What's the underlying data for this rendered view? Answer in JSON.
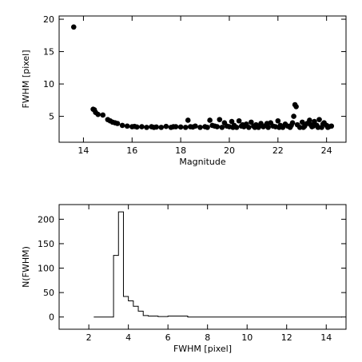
{
  "chart_data": [
    {
      "type": "scatter",
      "title": "",
      "xlabel": "Magnitude",
      "ylabel": "FWHM [pixel]",
      "xlim": [
        13,
        24.8
      ],
      "ylim": [
        1,
        20.5
      ],
      "xticks": [
        14,
        16,
        18,
        20,
        22,
        24
      ],
      "yticks": [
        5,
        10,
        15,
        20
      ],
      "grid": false,
      "points": [
        [
          13.6,
          18.8
        ],
        [
          14.4,
          6.1
        ],
        [
          14.45,
          6.0
        ],
        [
          14.5,
          5.6
        ],
        [
          14.6,
          5.3
        ],
        [
          14.8,
          5.2
        ],
        [
          15.0,
          4.5
        ],
        [
          15.1,
          4.3
        ],
        [
          15.2,
          4.1
        ],
        [
          15.3,
          4.0
        ],
        [
          15.4,
          3.9
        ],
        [
          15.6,
          3.6
        ],
        [
          15.8,
          3.5
        ],
        [
          16.0,
          3.4
        ],
        [
          16.2,
          3.35
        ],
        [
          16.4,
          3.4
        ],
        [
          16.6,
          3.3
        ],
        [
          16.8,
          3.4
        ],
        [
          17.0,
          3.35
        ],
        [
          17.2,
          3.3
        ],
        [
          17.4,
          3.45
        ],
        [
          17.6,
          3.3
        ],
        [
          17.8,
          3.4
        ],
        [
          18.0,
          3.35
        ],
        [
          18.2,
          3.3
        ],
        [
          18.3,
          4.4
        ],
        [
          18.4,
          3.4
        ],
        [
          18.6,
          3.5
        ],
        [
          18.8,
          3.3
        ],
        [
          19.0,
          3.4
        ],
        [
          19.2,
          4.4
        ],
        [
          19.3,
          3.6
        ],
        [
          19.5,
          3.4
        ],
        [
          19.6,
          4.5
        ],
        [
          19.7,
          3.3
        ],
        [
          19.8,
          4.0
        ],
        [
          19.9,
          3.5
        ],
        [
          20.0,
          3.4
        ],
        [
          20.1,
          4.2
        ],
        [
          20.2,
          3.6
        ],
        [
          20.3,
          3.3
        ],
        [
          20.4,
          4.3
        ],
        [
          20.5,
          3.5
        ],
        [
          20.6,
          3.4
        ],
        [
          20.7,
          3.8
        ],
        [
          20.8,
          3.3
        ],
        [
          20.9,
          4.1
        ],
        [
          21.0,
          3.5
        ],
        [
          21.1,
          3.7
        ],
        [
          21.2,
          3.3
        ],
        [
          21.3,
          3.9
        ],
        [
          21.4,
          3.4
        ],
        [
          21.5,
          3.6
        ],
        [
          21.6,
          3.3
        ],
        [
          21.7,
          4.0
        ],
        [
          21.8,
          3.5
        ],
        [
          21.9,
          3.4
        ],
        [
          22.0,
          4.3
        ],
        [
          22.1,
          3.6
        ],
        [
          22.2,
          3.3
        ],
        [
          22.3,
          3.8
        ],
        [
          22.4,
          3.5
        ],
        [
          22.5,
          3.3
        ],
        [
          22.6,
          4.0
        ],
        [
          22.65,
          5.0
        ],
        [
          22.7,
          6.8
        ],
        [
          22.75,
          6.5
        ],
        [
          22.8,
          3.7
        ],
        [
          22.9,
          3.3
        ],
        [
          23.0,
          4.1
        ],
        [
          23.1,
          3.5
        ],
        [
          23.2,
          3.9
        ],
        [
          23.3,
          4.4
        ],
        [
          23.4,
          3.4
        ],
        [
          23.5,
          4.2
        ],
        [
          23.6,
          3.6
        ],
        [
          23.7,
          4.5
        ],
        [
          23.8,
          3.3
        ],
        [
          23.9,
          4.0
        ],
        [
          24.0,
          3.6
        ],
        [
          24.1,
          3.4
        ],
        [
          24.2,
          3.5
        ],
        [
          16.1,
          3.45
        ],
        [
          16.9,
          3.3
        ],
        [
          17.7,
          3.4
        ],
        [
          18.5,
          3.35
        ],
        [
          19.1,
          3.3
        ],
        [
          19.4,
          3.5
        ],
        [
          20.15,
          3.3
        ],
        [
          20.55,
          3.7
        ],
        [
          21.05,
          3.3
        ],
        [
          21.55,
          3.9
        ],
        [
          22.05,
          3.3
        ],
        [
          22.55,
          3.6
        ],
        [
          23.05,
          3.3
        ],
        [
          23.35,
          3.7
        ],
        [
          23.65,
          3.3
        ],
        [
          23.85,
          3.8
        ],
        [
          24.05,
          3.3
        ],
        [
          23.45,
          3.5
        ]
      ]
    },
    {
      "type": "histogram",
      "title": "",
      "xlabel": "FWHM [pixel]",
      "ylabel": "N(FWHM)",
      "xlim": [
        0.5,
        15
      ],
      "ylim": [
        -25,
        230
      ],
      "xticks": [
        2,
        4,
        6,
        8,
        10,
        12,
        14
      ],
      "yticks": [
        0,
        50,
        100,
        150,
        200
      ],
      "grid": false,
      "bin_edges": [
        2.25,
        2.5,
        2.75,
        3.0,
        3.25,
        3.5,
        3.75,
        4.0,
        4.25,
        4.5,
        4.75,
        5.0,
        5.25,
        5.5,
        5.75,
        6.0,
        6.25,
        6.5,
        6.75,
        7.0,
        14.8
      ],
      "counts": [
        0,
        0,
        0,
        0,
        126,
        215,
        42,
        33,
        22,
        12,
        3,
        2,
        2,
        1,
        1,
        2,
        2,
        2,
        2,
        0
      ]
    }
  ]
}
